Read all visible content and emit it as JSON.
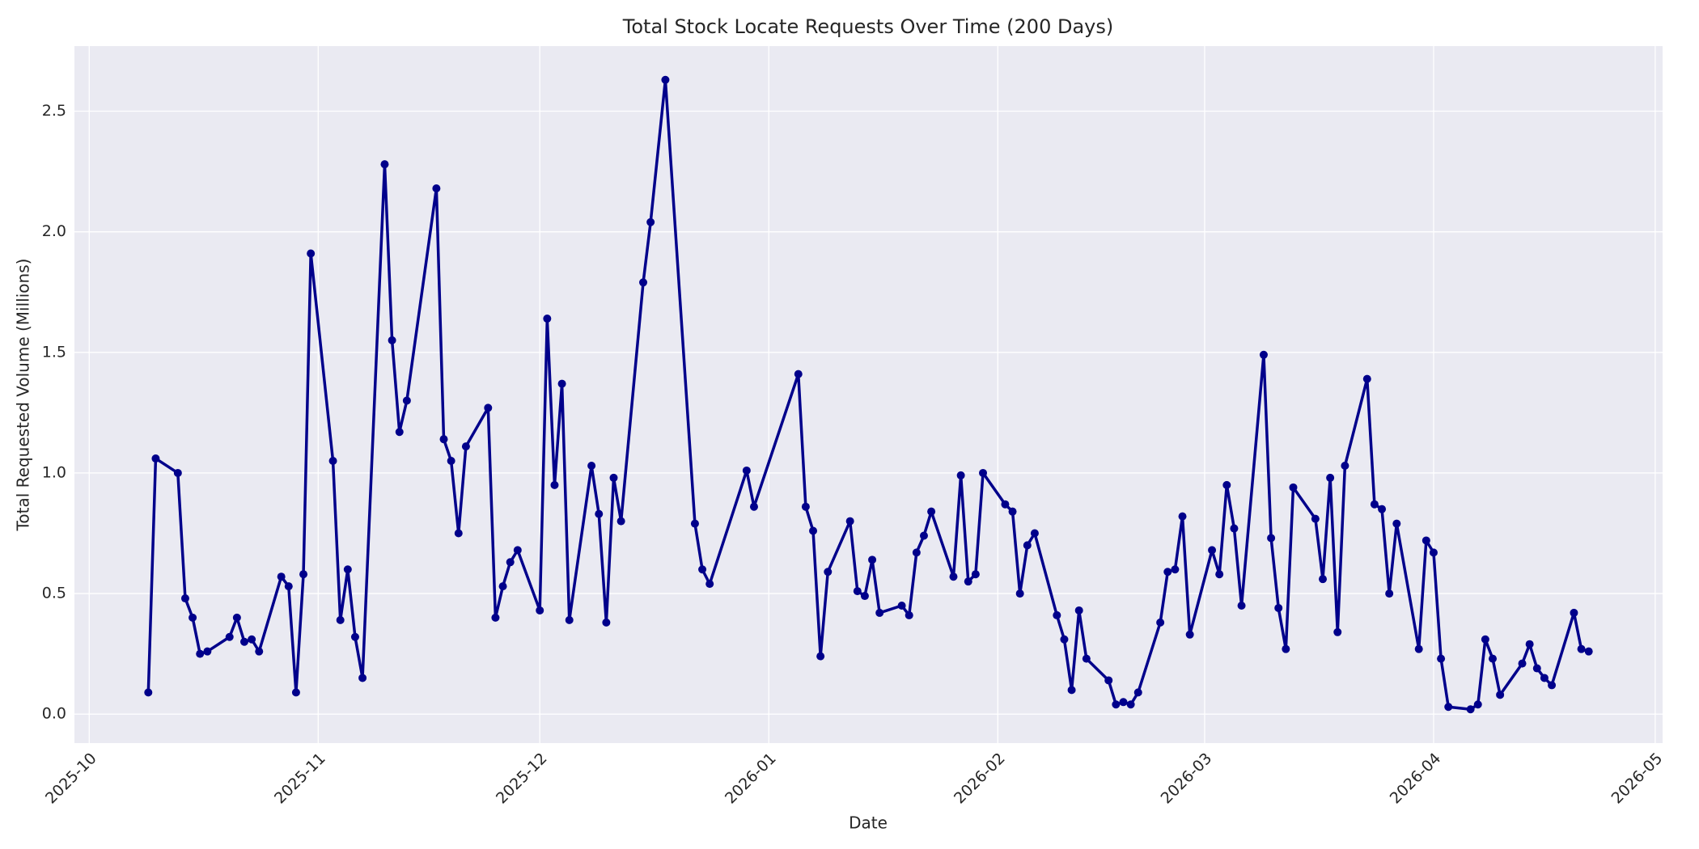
{
  "chart_data": {
    "type": "line",
    "title": "Total Stock Locate Requests Over Time (200 Days)",
    "xlabel": "Date",
    "ylabel": "Total Requested Volume (Millions)",
    "grid": true,
    "x": [
      "2025-10-09",
      "2025-10-10",
      "2025-10-13",
      "2025-10-14",
      "2025-10-15",
      "2025-10-16",
      "2025-10-17",
      "2025-10-20",
      "2025-10-21",
      "2025-10-22",
      "2025-10-23",
      "2025-10-24",
      "2025-10-27",
      "2025-10-28",
      "2025-10-29",
      "2025-10-30",
      "2025-10-31",
      "2025-11-03",
      "2025-11-04",
      "2025-11-05",
      "2025-11-06",
      "2025-11-07",
      "2025-11-10",
      "2025-11-11",
      "2025-11-12",
      "2025-11-13",
      "2025-11-17",
      "2025-11-18",
      "2025-11-19",
      "2025-11-20",
      "2025-11-21",
      "2025-11-24",
      "2025-11-25",
      "2025-11-26",
      "2025-11-27",
      "2025-11-28",
      "2025-12-01",
      "2025-12-02",
      "2025-12-03",
      "2025-12-04",
      "2025-12-05",
      "2025-12-08",
      "2025-12-09",
      "2025-12-10",
      "2025-12-11",
      "2025-12-12",
      "2025-12-15",
      "2025-12-16",
      "2025-12-18",
      "2025-12-22",
      "2025-12-23",
      "2025-12-24",
      "2025-12-29",
      "2025-12-30",
      "2026-01-05",
      "2026-01-06",
      "2026-01-07",
      "2026-01-08",
      "2026-01-09",
      "2026-01-12",
      "2026-01-13",
      "2026-01-14",
      "2026-01-15",
      "2026-01-16",
      "2026-01-19",
      "2026-01-20",
      "2026-01-21",
      "2026-01-22",
      "2026-01-23",
      "2026-01-26",
      "2026-01-27",
      "2026-01-28",
      "2026-01-29",
      "2026-01-30",
      "2026-02-02",
      "2026-02-03",
      "2026-02-04",
      "2026-02-05",
      "2026-02-06",
      "2026-02-09",
      "2026-02-10",
      "2026-02-11",
      "2026-02-12",
      "2026-02-13",
      "2026-02-16",
      "2026-02-17",
      "2026-02-18",
      "2026-02-19",
      "2026-02-20",
      "2026-02-23",
      "2026-02-24",
      "2026-02-25",
      "2026-02-26",
      "2026-02-27",
      "2026-03-02",
      "2026-03-03",
      "2026-03-04",
      "2026-03-05",
      "2026-03-06",
      "2026-03-09",
      "2026-03-10",
      "2026-03-11",
      "2026-03-12",
      "2026-03-13",
      "2026-03-16",
      "2026-03-17",
      "2026-03-18",
      "2026-03-19",
      "2026-03-20",
      "2026-03-23",
      "2026-03-24",
      "2026-03-25",
      "2026-03-26",
      "2026-03-27",
      "2026-03-30",
      "2026-03-31",
      "2026-04-01",
      "2026-04-02",
      "2026-04-03",
      "2026-04-06",
      "2026-04-07",
      "2026-04-08",
      "2026-04-09",
      "2026-04-10",
      "2026-04-13",
      "2026-04-14",
      "2026-04-15",
      "2026-04-16",
      "2026-04-17",
      "2026-04-20",
      "2026-04-21",
      "2026-04-22"
    ],
    "series": [
      {
        "color": "#00008b",
        "values": [
          0.09,
          1.06,
          1.0,
          0.48,
          0.4,
          0.25,
          0.26,
          0.32,
          0.4,
          0.3,
          0.31,
          0.26,
          0.57,
          0.53,
          0.09,
          0.58,
          1.91,
          1.05,
          0.39,
          0.6,
          0.32,
          0.15,
          2.28,
          1.55,
          1.17,
          1.3,
          2.18,
          1.14,
          1.05,
          0.75,
          1.11,
          1.27,
          0.4,
          0.53,
          0.63,
          0.68,
          0.43,
          1.64,
          0.95,
          1.37,
          0.39,
          1.03,
          0.83,
          0.38,
          0.98,
          0.8,
          1.79,
          2.04,
          2.63,
          0.79,
          0.6,
          0.54,
          1.01,
          0.86,
          1.41,
          0.86,
          0.76,
          0.24,
          0.59,
          0.8,
          0.51,
          0.49,
          0.64,
          0.42,
          0.45,
          0.41,
          0.67,
          0.74,
          0.84,
          0.57,
          0.99,
          0.55,
          0.58,
          1.0,
          0.87,
          0.84,
          0.5,
          0.7,
          0.75,
          0.41,
          0.31,
          0.1,
          0.43,
          0.23,
          0.14,
          0.04,
          0.05,
          0.04,
          0.09,
          0.38,
          0.59,
          0.6,
          0.82,
          0.33,
          0.68,
          0.58,
          0.95,
          0.77,
          0.45,
          1.49,
          0.73,
          0.44,
          0.27,
          0.94,
          0.81,
          0.56,
          0.98,
          0.34,
          1.03,
          1.39,
          0.87,
          0.85,
          0.5,
          0.79,
          0.27,
          0.72,
          0.67,
          0.23,
          0.03,
          0.02,
          0.04,
          0.31,
          0.23,
          0.08,
          0.21,
          0.29,
          0.19,
          0.15,
          0.12,
          0.42,
          0.27,
          0.26
        ]
      }
    ],
    "xlim": [
      "2025-09-29",
      "2026-05-02"
    ],
    "xticks": [
      "2025-10",
      "2025-11",
      "2025-12",
      "2026-01",
      "2026-02",
      "2026-03",
      "2026-04",
      "2026-05"
    ],
    "ylim": [
      -0.12,
      2.77
    ],
    "yticks": [
      {
        "value": 0,
        "label": "0.0"
      },
      0.5,
      {
        "value": 1,
        "label": "1.0"
      },
      1.5,
      {
        "value": 2,
        "label": "2.0"
      },
      2.5
    ]
  }
}
